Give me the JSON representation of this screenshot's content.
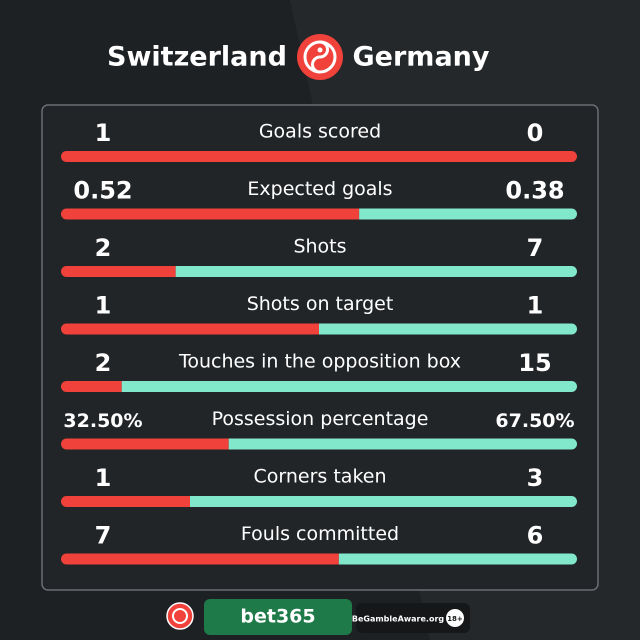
{
  "chart_data": {
    "type": "bar",
    "categories": [
      "Goals scored",
      "Expected goals",
      "Shots",
      "Shots on target",
      "Touches in the opposition box",
      "Possession percentage",
      "Corners taken",
      "Fouls committed"
    ],
    "series": [
      {
        "name": "Switzerland",
        "color": "#f0413a",
        "values": [
          1,
          0.52,
          2,
          1,
          2,
          32.5,
          1,
          7
        ],
        "value_labels": [
          "1",
          "0.52",
          "2",
          "1",
          "2",
          "32.50%",
          "1",
          "7"
        ]
      },
      {
        "name": "Germany",
        "color": "#82e8cb",
        "values": [
          0,
          0.38,
          7,
          1,
          15,
          67.5,
          3,
          6
        ],
        "value_labels": [
          "0",
          "0.38",
          "7",
          "1",
          "15",
          "67.50%",
          "3",
          "6"
        ]
      }
    ]
  },
  "footer": {
    "sponsor": "bet365",
    "gamble_aware": "BeGambleAware.org",
    "age": "18+"
  }
}
